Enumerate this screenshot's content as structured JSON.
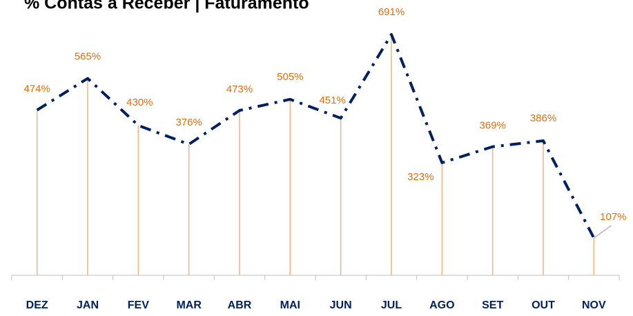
{
  "chart_data": {
    "type": "line",
    "title": "% Contas a Receber | Faturamento",
    "categories": [
      "DEZ",
      "JAN",
      "FEV",
      "MAR",
      "ABR",
      "MAI",
      "JUN",
      "JUL",
      "AGO",
      "SET",
      "OUT",
      "NOV"
    ],
    "series": [
      {
        "name": "% Contas a Receber | Faturamento",
        "color": "#002060",
        "values": [
          474,
          565,
          430,
          376,
          473,
          505,
          451,
          691,
          323,
          369,
          386,
          107
        ],
        "value_labels": [
          "474%",
          "565%",
          "430%",
          "376%",
          "473%",
          "505%",
          "451%",
          "691%",
          "323%",
          "369%",
          "386%",
          "107%"
        ]
      }
    ],
    "ylim": [
      0,
      790
    ],
    "label_color": "#e46c0a",
    "drop_line_color": "#f4b183"
  }
}
